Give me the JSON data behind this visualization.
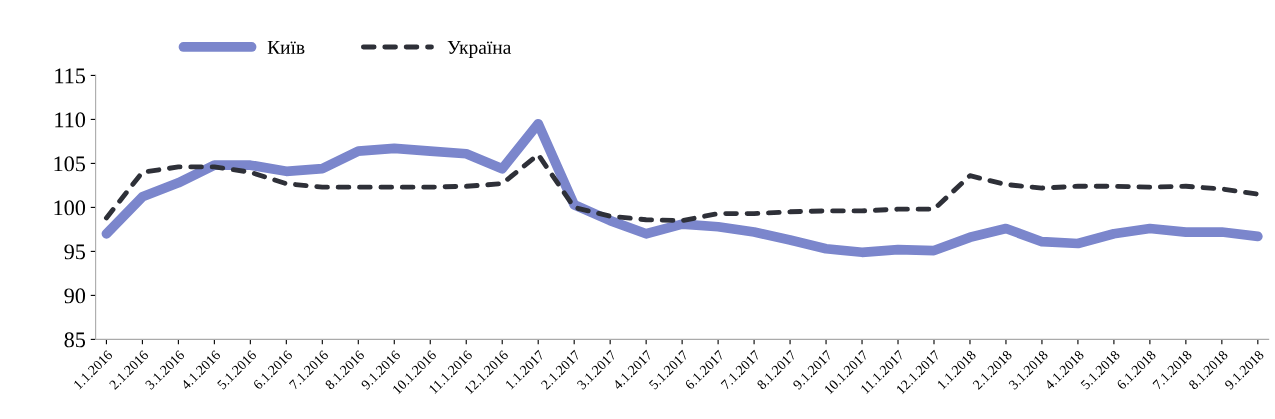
{
  "chart_data": {
    "type": "line",
    "categories": [
      "1.1.2016",
      "2.1.2016",
      "3.1.2016",
      "4.1.2016",
      "5.1.2016",
      "6.1.2016",
      "7.1.2016",
      "8.1.2016",
      "9.1.2016",
      "10.1.2016",
      "11.1.2016",
      "12.1.2016",
      "1.1.2017",
      "2.1.2017",
      "3.1.2017",
      "4.1.2017",
      "5.1.2017",
      "6.1.2017",
      "7.1.2017",
      "8.1.2017",
      "9.1.2017",
      "10.1.2017",
      "11.1.2017",
      "12.1.2017",
      "1.1.2018",
      "2.1.2018",
      "3.1.2018",
      "4.1.2018",
      "5.1.2018",
      "6.1.2018",
      "7.1.2018",
      "8.1.2018",
      "9.1.2018"
    ],
    "series": [
      {
        "name": "Київ",
        "color": "#7b86cc",
        "line_style": "solid",
        "values": [
          97,
          101.2,
          102.8,
          104.8,
          104.8,
          104.1,
          104.4,
          106.4,
          106.7,
          106.4,
          106.1,
          104.4,
          109.5,
          100.3,
          98.5,
          97,
          98.1,
          97.8,
          97.2,
          96.3,
          95.3,
          94.9,
          95.2,
          95.1,
          96.6,
          97.6,
          96.1,
          95.9,
          97,
          97.6,
          97.2,
          97.2,
          96.7
        ]
      },
      {
        "name": "Україна",
        "color": "#2e3038",
        "line_style": "dashed",
        "values": [
          98.8,
          104,
          104.6,
          104.6,
          104,
          102.7,
          102.3,
          102.3,
          102.3,
          102.3,
          102.4,
          102.7,
          106,
          100,
          99,
          98.6,
          98.5,
          99.3,
          99.3,
          99.5,
          99.6,
          99.6,
          99.8,
          99.8,
          103.6,
          102.6,
          102.2,
          102.4,
          102.4,
          102.3,
          102.4,
          102.1,
          101.5
        ]
      }
    ],
    "ylim": [
      85,
      115
    ],
    "yticks": [
      85,
      90,
      95,
      100,
      105,
      110,
      115
    ],
    "grid": false,
    "legend": "top left",
    "marker": "none"
  }
}
